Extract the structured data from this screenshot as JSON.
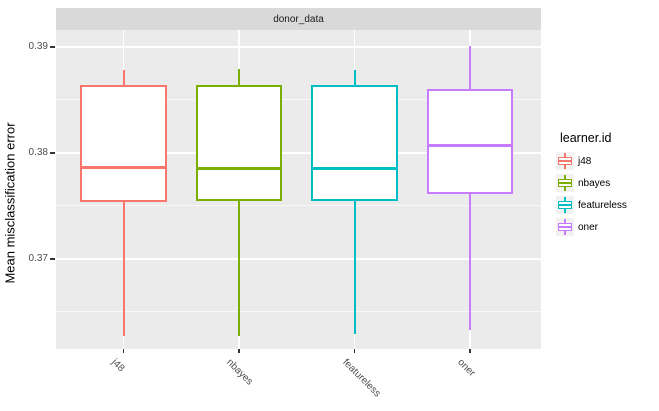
{
  "strip": {
    "label": "donor_data"
  },
  "y_axis": {
    "title": "Mean misclassification error",
    "ticks": [
      {
        "label": "0.39",
        "value": 0.39
      },
      {
        "label": "0.38",
        "value": 0.38
      },
      {
        "label": "0.37",
        "value": 0.37
      }
    ]
  },
  "x_axis": {
    "ticks": [
      "j48",
      "nbayes",
      "featureless",
      "oner"
    ]
  },
  "legend": {
    "title": "learner.id",
    "entries": [
      {
        "label": "j48",
        "color": "#F8766D"
      },
      {
        "label": "nbayes",
        "color": "#7CAE00"
      },
      {
        "label": "featureless",
        "color": "#00BFC4"
      },
      {
        "label": "oner",
        "color": "#C77CFF"
      }
    ]
  },
  "colors": {
    "strip_bg": "#D9D9D9",
    "panel_bg": "#EBEBEB",
    "gridline": "#FFFFFF",
    "tick_mark": "#333333",
    "axis_text": "#4D4D4D",
    "legend_key_bg": "#F2F2F2"
  },
  "chart_data": {
    "type": "boxplot",
    "title": "donor_data",
    "xlabel": "",
    "ylabel": "Mean misclassification error",
    "ylim": [
      0.3615,
      0.3916
    ],
    "y_major_ticks": [
      0.39,
      0.38,
      0.37
    ],
    "y_minor_ticks": [
      0.385,
      0.375,
      0.365
    ],
    "grid": true,
    "legend_title": "learner.id",
    "legend_position": "right",
    "categories": [
      "j48",
      "nbayes",
      "featureless",
      "oner"
    ],
    "series": [
      {
        "name": "j48",
        "color": "#F8766D",
        "whisker_low": 0.3627,
        "q1": 0.3754,
        "median": 0.3786,
        "q3": 0.3864,
        "whisker_high": 0.3878
      },
      {
        "name": "nbayes",
        "color": "#7CAE00",
        "whisker_low": 0.3627,
        "q1": 0.3755,
        "median": 0.3785,
        "q3": 0.3864,
        "whisker_high": 0.3879
      },
      {
        "name": "featureless",
        "color": "#00BFC4",
        "whisker_low": 0.3629,
        "q1": 0.3755,
        "median": 0.3785,
        "q3": 0.3864,
        "whisker_high": 0.3878
      },
      {
        "name": "oner",
        "color": "#C77CFF",
        "whisker_low": 0.3633,
        "q1": 0.3761,
        "median": 0.3807,
        "q3": 0.386,
        "whisker_high": 0.3901
      }
    ]
  }
}
